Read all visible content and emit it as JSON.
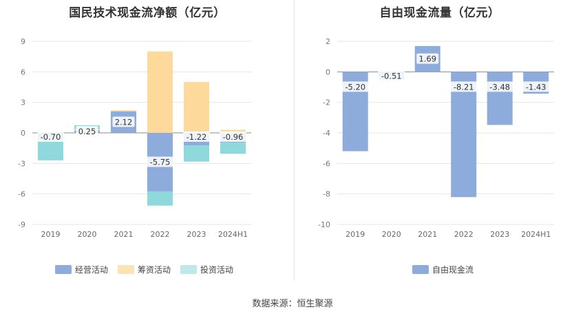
{
  "chart_data": [
    {
      "type": "bar",
      "stacked": true,
      "title": "国民技术现金流净额（亿元）",
      "categories": [
        "2019",
        "2020",
        "2021",
        "2022",
        "2023",
        "2024H1"
      ],
      "ylim": [
        -9,
        9
      ],
      "yticks": [
        -9,
        -6,
        -3,
        0,
        3,
        6,
        9
      ],
      "grid": true,
      "legend_position": "bottom",
      "series": [
        {
          "name": "经营活动",
          "color": "#8eacdb",
          "values": [
            -0.7,
            0.25,
            2.12,
            -5.75,
            -1.22,
            -0.96
          ],
          "labels": [
            "-0.70",
            "0.25",
            "2.12",
            "-5.75",
            "-1.22",
            "-0.96"
          ]
        },
        {
          "name": "筹资活动",
          "color": "#fdd99b",
          "values": [
            0.0,
            0.1,
            0.1,
            8.0,
            5.0,
            0.3
          ]
        },
        {
          "name": "投资活动",
          "color": "#8fd8dc",
          "values": [
            -2.0,
            0.4,
            0.0,
            -1.4,
            -1.6,
            -1.1
          ]
        }
      ]
    },
    {
      "type": "bar",
      "title": "自由现金流量（亿元）",
      "categories": [
        "2019",
        "2020",
        "2021",
        "2022",
        "2023",
        "2024H1"
      ],
      "ylim": [
        -10,
        2
      ],
      "yticks": [
        -10,
        -8,
        -6,
        -4,
        -2,
        0,
        2
      ],
      "grid": true,
      "legend_position": "bottom",
      "series": [
        {
          "name": "自由现金流",
          "color": "#8eacdb",
          "values": [
            -5.2,
            -0.51,
            1.69,
            -8.21,
            -3.48,
            -1.43
          ],
          "labels": [
            "-5.20",
            "-0.51",
            "1.69",
            "-8.21",
            "-3.48",
            "-1.43"
          ]
        }
      ]
    }
  ],
  "legend_left": [
    "经营活动",
    "筹资活动",
    "投资活动"
  ],
  "legend_right": [
    "自由现金流"
  ],
  "source": "数据来源：恒生聚源"
}
